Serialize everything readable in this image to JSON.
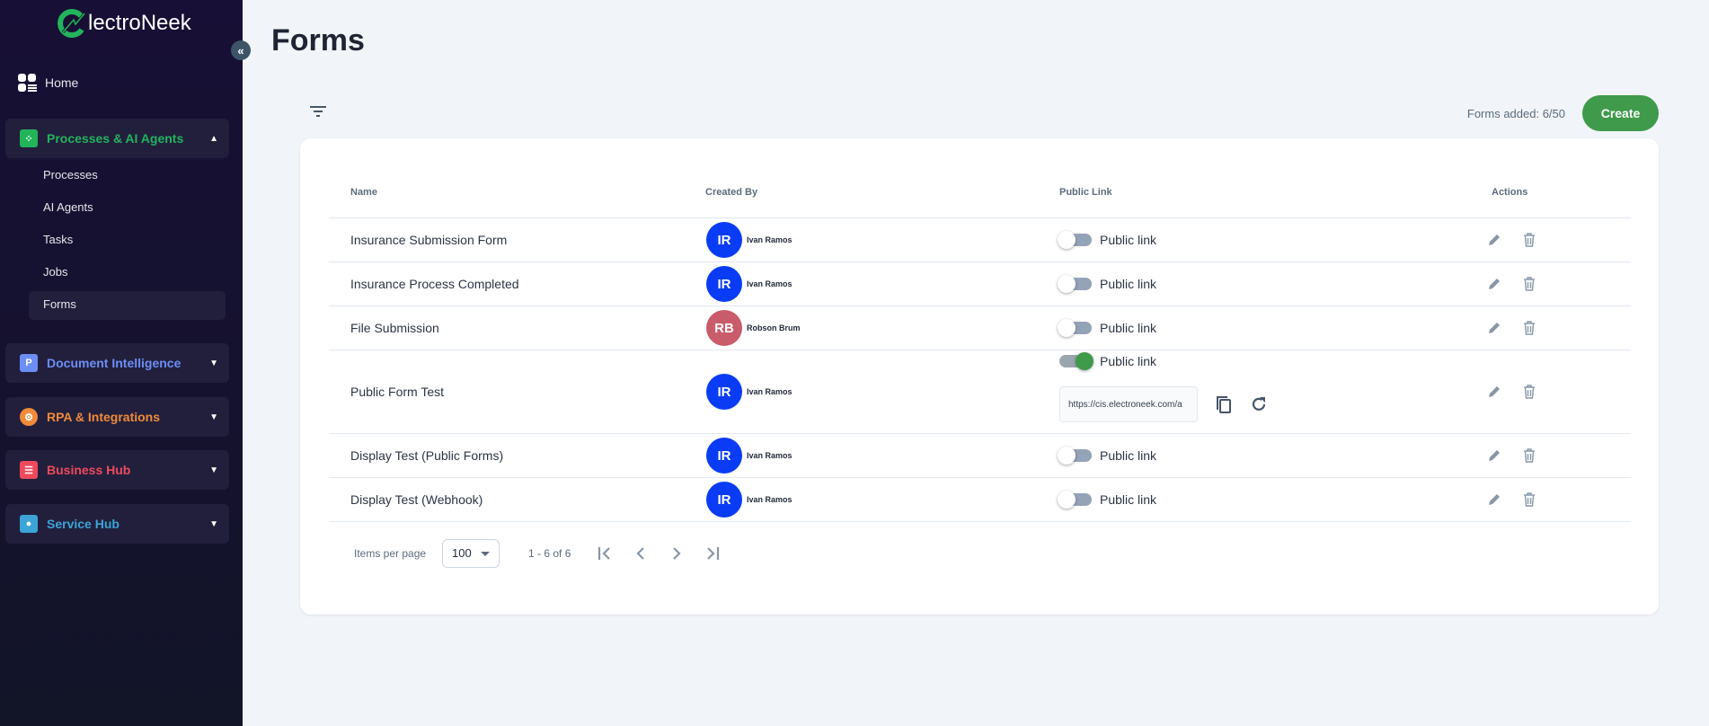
{
  "sidebar": {
    "logo_text": "lectroNeek",
    "home": "Home",
    "groups": [
      {
        "label": "Processes & AI Agents",
        "color": "#22b35b",
        "icon": "processes-icon",
        "expanded": true
      },
      {
        "label": "Document Intelligence",
        "color": "#6c8ff5",
        "icon": "document-icon"
      },
      {
        "label": "RPA & Integrations",
        "color": "#f08b3a",
        "icon": "gear-icon"
      },
      {
        "label": "Business Hub",
        "color": "#ef4a5c",
        "icon": "business-icon"
      },
      {
        "label": "Service Hub",
        "color": "#3ca4d6",
        "icon": "users-icon"
      }
    ],
    "sub_items": [
      "Processes",
      "AI Agents",
      "Tasks",
      "Jobs",
      "Forms"
    ],
    "active": "Forms"
  },
  "page": {
    "title": "Forms",
    "forms_added": "Forms added: 6/50",
    "create_label": "Create"
  },
  "table": {
    "headers": [
      "Name",
      "Created By",
      "Public Link",
      "Actions"
    ],
    "public_link_label": "Public link",
    "rows": [
      {
        "name": "Insurance Submission Form",
        "initials": "IR",
        "user": "Ivan Ramos",
        "avatar_color": "#0a3cf5",
        "public": false
      },
      {
        "name": "Insurance Process Completed",
        "initials": "IR",
        "user": "Ivan Ramos",
        "avatar_color": "#0a3cf5",
        "public": false
      },
      {
        "name": "File Submission",
        "initials": "RB",
        "user": "Robson Brum",
        "avatar_color": "#c95b6a",
        "public": false
      },
      {
        "name": "Public Form Test",
        "initials": "IR",
        "user": "Ivan Ramos",
        "avatar_color": "#0a3cf5",
        "public": true,
        "url": "https://cis.electroneek.com/a"
      },
      {
        "name": "Display Test (Public Forms)",
        "initials": "IR",
        "user": "Ivan Ramos",
        "avatar_color": "#0a3cf5",
        "public": false
      },
      {
        "name": "Display Test (Webhook)",
        "initials": "IR",
        "user": "Ivan Ramos",
        "avatar_color": "#0a3cf5",
        "public": false
      }
    ]
  },
  "pagination": {
    "items_per_page_label": "Items per page",
    "page_size": "100",
    "range": "1 - 6 of 6"
  }
}
